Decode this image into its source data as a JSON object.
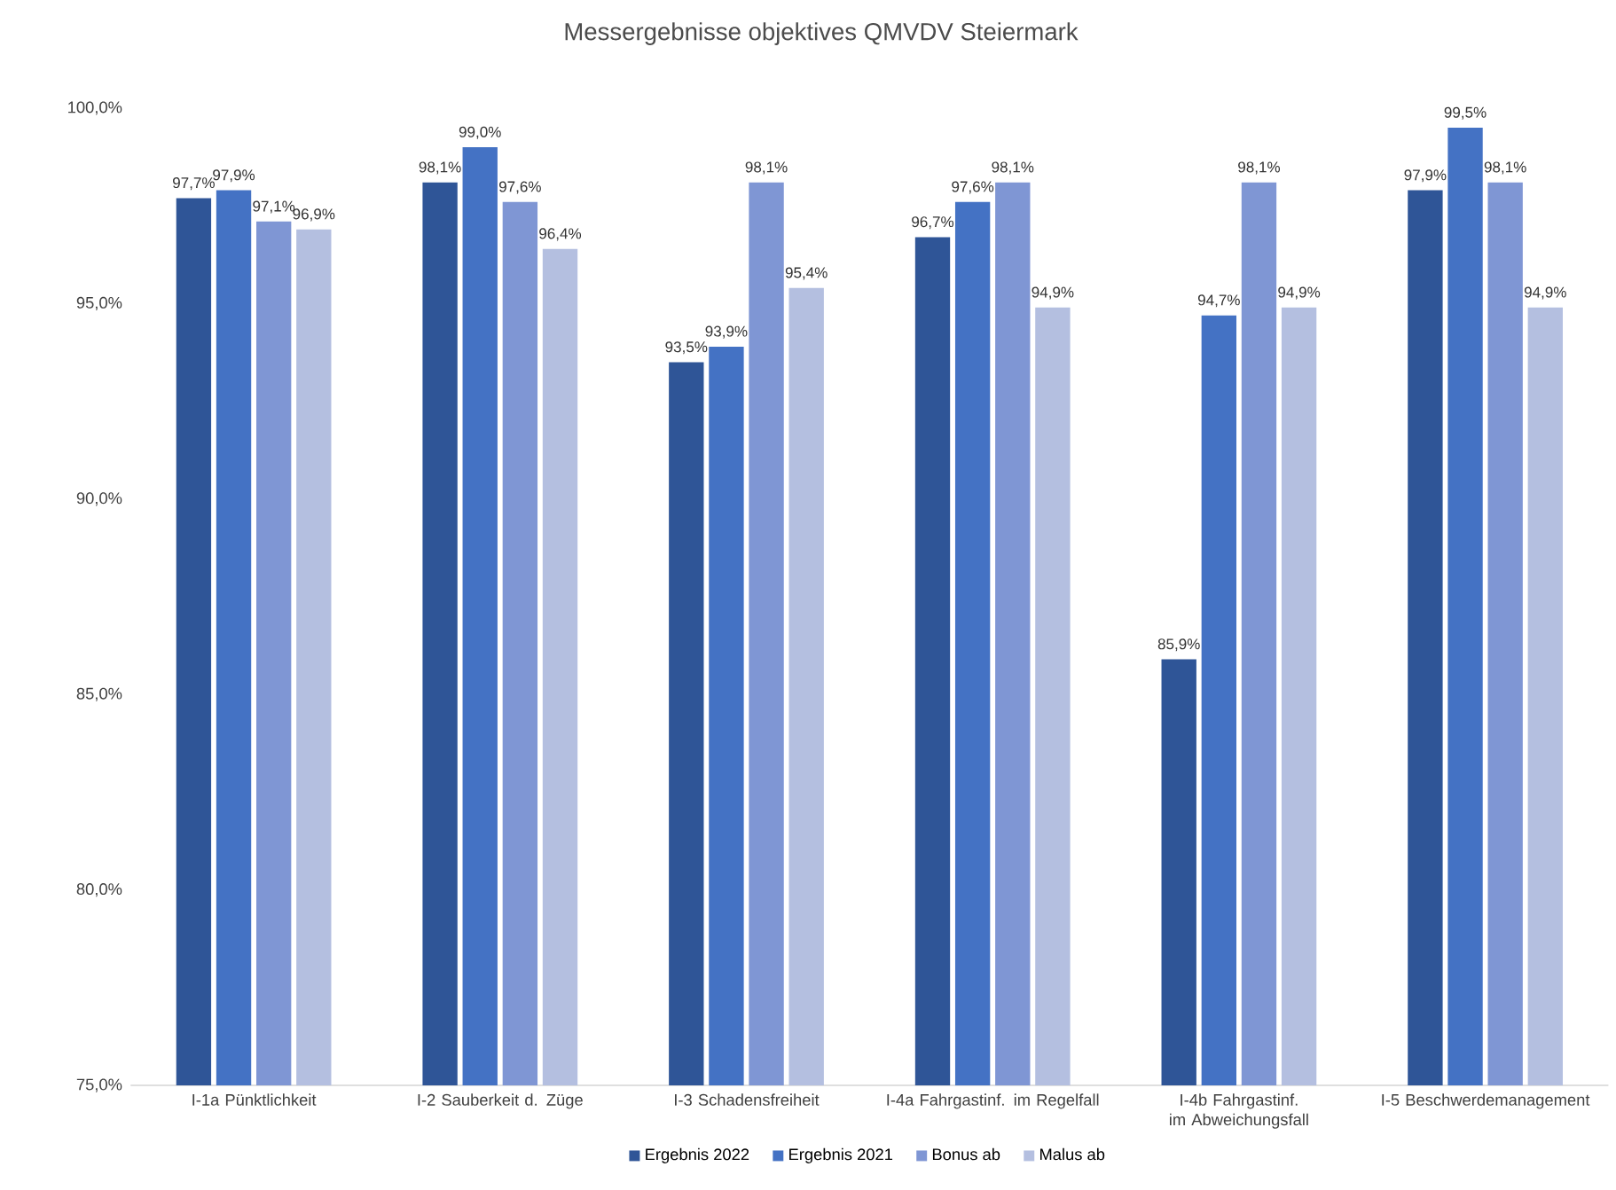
{
  "chart_data": {
    "type": "bar",
    "title": "Messergebnisse objektives QMVDV Steiermark",
    "categories": [
      "I-1a Pünktlichkeit",
      "I-2 Sauberkeit d. Züge",
      "I-3 Schadensfreiheit",
      "I-4a Fahrgastinf. im Regelfall",
      "I-4b Fahrgastinf. im Abweichungsfall",
      "I-5 Beschwerdemanagement"
    ],
    "series": [
      {
        "name": "Ergebnis 2022",
        "color": "#2f5597",
        "values": [
          97.7,
          98.1,
          93.5,
          96.7,
          85.9,
          97.9
        ],
        "value_labels": [
          "97,7%",
          "98,1%",
          "93,5%",
          "96,7%",
          "85,9%",
          "97,9%"
        ]
      },
      {
        "name": "Ergebnis 2021",
        "color": "#4472c4",
        "values": [
          97.9,
          99.0,
          93.9,
          97.6,
          94.7,
          99.5
        ],
        "value_labels": [
          "97,9%",
          "99,0%",
          "93,9%",
          "97,6%",
          "94,7%",
          "99,5%"
        ]
      },
      {
        "name": "Bonus ab",
        "color": "#7f96d4",
        "values": [
          97.1,
          97.6,
          98.1,
          98.1,
          98.1,
          98.1
        ],
        "value_labels": [
          "97,1%",
          "97,6%",
          "98,1%",
          "98,1%",
          "98,1%",
          "98,1%"
        ]
      },
      {
        "name": "Malus ab",
        "color": "#b4bfe0",
        "values": [
          96.9,
          96.4,
          95.4,
          94.9,
          94.9,
          94.9
        ],
        "value_labels": [
          "96,9%",
          "96,4%",
          "95,4%",
          "94,9%",
          "94,9%",
          "94,9%"
        ]
      }
    ],
    "ylim": [
      75,
      100
    ],
    "yticks": [
      {
        "value": 75,
        "label": "75,0%"
      },
      {
        "value": 80,
        "label": "80,0%"
      },
      {
        "value": 85,
        "label": "85,0%"
      },
      {
        "value": 90,
        "label": "90,0%"
      },
      {
        "value": 95,
        "label": "95,0%"
      },
      {
        "value": 100,
        "label": "100,0%"
      }
    ],
    "legend": "bottom"
  }
}
